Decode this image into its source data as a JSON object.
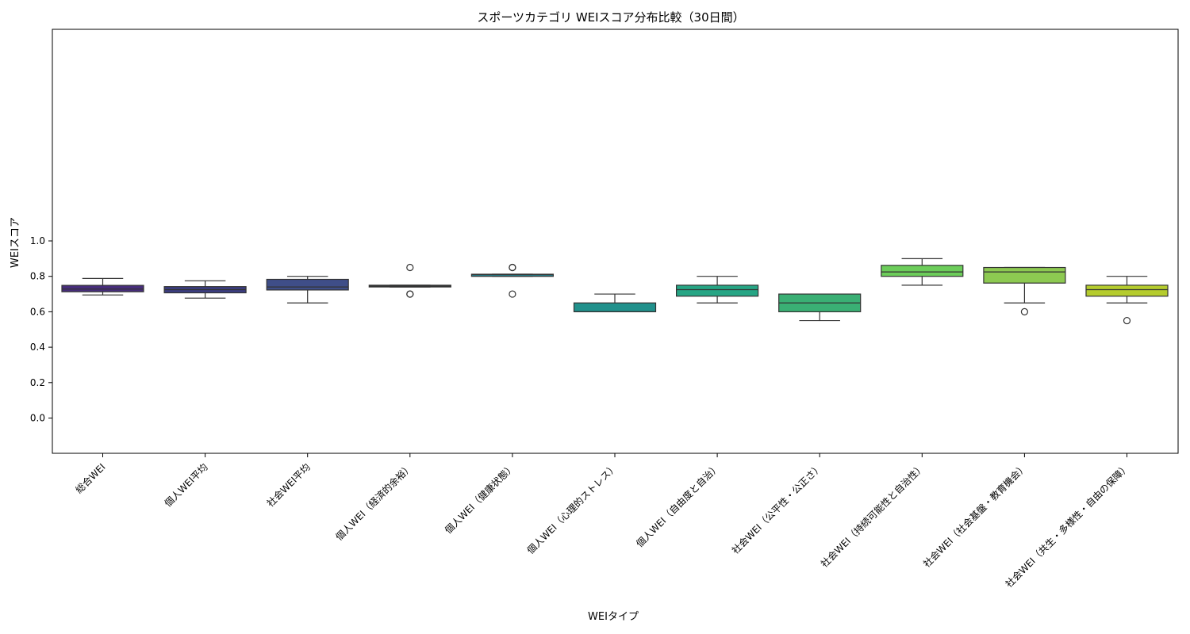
{
  "chart_data": {
    "type": "box",
    "title": "スポーツカテゴリ WEIスコア分布比較（30日間）",
    "xlabel": "WEIタイプ",
    "ylabel": "WEIスコア",
    "ylim": [
      -0.1,
      1.1
    ],
    "yticks": [
      0.0,
      0.2,
      0.4,
      0.6,
      0.8,
      1.0
    ],
    "ytick_labels": [
      "0.0",
      "0.2",
      "0.4",
      "0.6",
      "0.8",
      "1.0"
    ],
    "grid": false,
    "categories": [
      "総合WEI",
      "個人WEI平均",
      "社会WEI平均",
      "個人WEI（経済的余裕）",
      "個人WEI（健康状態）",
      "個人WEI（心理的ストレス）",
      "個人WEI（自由度と自治）",
      "社会WEI（公平性・公正さ）",
      "社会WEI（持続可能性と自治性）",
      "社会WEI（社会基盤・教育機会）",
      "社会WEI（共生・多様性・自由の保障）"
    ],
    "boxes": [
      {
        "whisker_low": 0.695,
        "q1": 0.713,
        "median": 0.728,
        "q3": 0.749,
        "whisker_high": 0.788,
        "outliers": [],
        "color": "#472d7b"
      },
      {
        "whisker_low": 0.677,
        "q1": 0.707,
        "median": 0.725,
        "q3": 0.742,
        "whisker_high": 0.775,
        "outliers": [],
        "color": "#3b3d80"
      },
      {
        "whisker_low": 0.65,
        "q1": 0.723,
        "median": 0.74,
        "q3": 0.783,
        "whisker_high": 0.8,
        "outliers": [],
        "color": "#3f4e88"
      },
      {
        "whisker_low": 0.74,
        "q1": 0.74,
        "median": 0.745,
        "q3": 0.75,
        "whisker_high": 0.75,
        "outliers": [
          0.85,
          0.7,
          0.7
        ],
        "color": "#2e6f8e"
      },
      {
        "whisker_low": 0.8,
        "q1": 0.8,
        "median": 0.81,
        "q3": 0.812,
        "whisker_high": 0.812,
        "outliers": [
          0.85,
          0.85,
          0.7
        ],
        "color": "#25838e"
      },
      {
        "whisker_low": 0.6,
        "q1": 0.6,
        "median": 0.6,
        "q3": 0.65,
        "whisker_high": 0.7,
        "outliers": [],
        "color": "#21918c"
      },
      {
        "whisker_low": 0.65,
        "q1": 0.688,
        "median": 0.725,
        "q3": 0.75,
        "whisker_high": 0.8,
        "outliers": [],
        "color": "#26a584"
      },
      {
        "whisker_low": 0.55,
        "q1": 0.6,
        "median": 0.65,
        "q3": 0.7,
        "whisker_high": 0.7,
        "outliers": [],
        "color": "#3aaf74"
      },
      {
        "whisker_low": 0.75,
        "q1": 0.8,
        "median": 0.825,
        "q3": 0.862,
        "whisker_high": 0.9,
        "outliers": [],
        "color": "#6ccd5a"
      },
      {
        "whisker_low": 0.65,
        "q1": 0.762,
        "median": 0.825,
        "q3": 0.85,
        "whisker_high": 0.85,
        "outliers": [
          0.6
        ],
        "color": "#8dc951"
      },
      {
        "whisker_low": 0.65,
        "q1": 0.688,
        "median": 0.725,
        "q3": 0.75,
        "whisker_high": 0.8,
        "outliers": [
          0.55
        ],
        "color": "#b5cc2d"
      }
    ]
  }
}
